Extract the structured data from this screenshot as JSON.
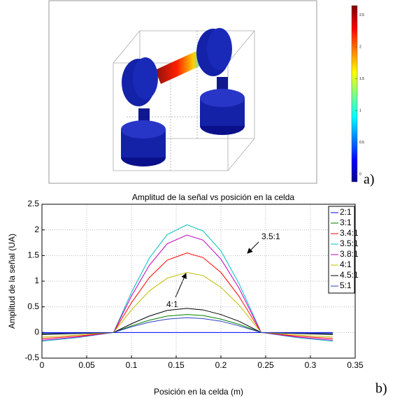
{
  "figure_a": {
    "label": "a)",
    "colorbar": {
      "lim": [
        -0.12,
        2.65
      ],
      "ticks": [
        0,
        0.5,
        1,
        1.5,
        2,
        2.5
      ]
    }
  },
  "chart_data": {
    "type": "line",
    "title": "Amplitud de la señal vs posición en la celda",
    "x_label": "Posición en la celda (m)",
    "y_label": "Amplitud de la señal (UA)",
    "label": "b)",
    "x": [
      0,
      0.04,
      0.08,
      0.1,
      0.12,
      0.14,
      0.162,
      0.18,
      0.2,
      0.22,
      0.245,
      0.285,
      0.325
    ],
    "xlim": [
      0,
      0.35
    ],
    "xticks": [
      0,
      0.05,
      0.1,
      0.15,
      0.2,
      0.25,
      0.3,
      0.35
    ],
    "ylim": [
      -0.5,
      2.5
    ],
    "yticks": [
      -0.5,
      0,
      0.5,
      1,
      1.5,
      2,
      2.5
    ],
    "grid": true,
    "legend": "top-right",
    "series": [
      {
        "name": "2:1",
        "color": "#0000ff",
        "values": [
          0,
          0,
          0,
          0,
          0,
          0,
          0,
          0,
          0,
          0,
          0,
          0,
          0
        ]
      },
      {
        "name": "3:1",
        "color": "#008000",
        "values": [
          -0.03,
          -0.02,
          0,
          0.13,
          0.24,
          0.32,
          0.35,
          0.33,
          0.26,
          0.16,
          0,
          -0.02,
          -0.03
        ]
      },
      {
        "name": "3.4:1",
        "color": "#ff0000",
        "values": [
          -0.12,
          -0.07,
          0,
          0.58,
          1.07,
          1.41,
          1.55,
          1.46,
          1.17,
          0.71,
          0,
          -0.07,
          -0.12
        ]
      },
      {
        "name": "3.5:1",
        "color": "#00bfbf",
        "values": [
          -0.17,
          -0.1,
          0,
          0.78,
          1.45,
          1.91,
          2.1,
          1.98,
          1.59,
          0.96,
          0,
          -0.1,
          -0.17
        ]
      },
      {
        "name": "3.8:1",
        "color": "#bf00bf",
        "values": [
          -0.15,
          -0.09,
          0,
          0.71,
          1.31,
          1.73,
          1.9,
          1.8,
          1.43,
          0.87,
          0,
          -0.09,
          -0.15
        ]
      },
      {
        "name": "4:1",
        "color": "#bfbf00",
        "values": [
          -0.09,
          -0.05,
          0,
          0.44,
          0.81,
          1.06,
          1.17,
          1.11,
          0.88,
          0.54,
          0,
          -0.05,
          -0.09
        ]
      },
      {
        "name": "4.5:1",
        "color": "#000000",
        "values": [
          -0.04,
          -0.02,
          0,
          0.17,
          0.32,
          0.43,
          0.47,
          0.44,
          0.35,
          0.22,
          0,
          -0.02,
          -0.04
        ]
      },
      {
        "name": "5:1",
        "color": "#2a3fbf",
        "values": [
          -0.02,
          -0.01,
          0,
          0.11,
          0.2,
          0.26,
          0.29,
          0.27,
          0.22,
          0.13,
          0,
          -0.01,
          -0.02
        ]
      }
    ],
    "annotations": [
      "3.5:1",
      "4:1"
    ]
  }
}
